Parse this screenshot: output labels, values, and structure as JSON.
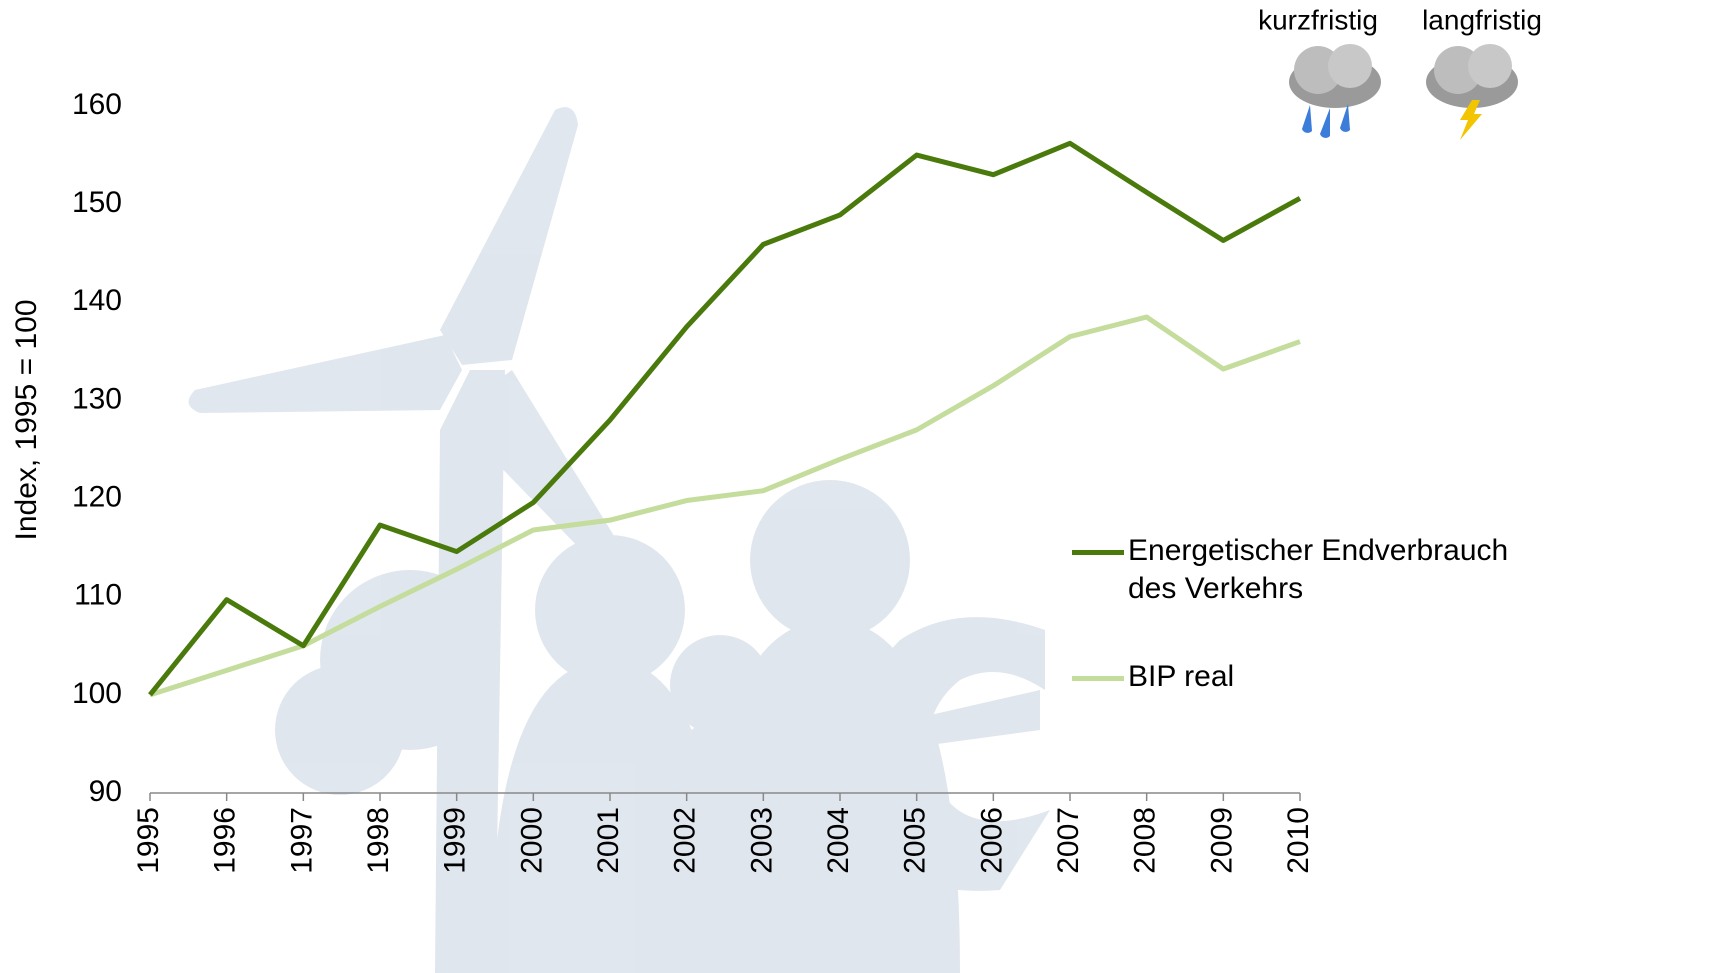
{
  "chart_data": {
    "type": "line",
    "y_label": "Index, 1995 = 100",
    "categories": [
      "1995",
      "1996",
      "1997",
      "1998",
      "1999",
      "2000",
      "2001",
      "2002",
      "2003",
      "2004",
      "2005",
      "2006",
      "2007",
      "2008",
      "2009",
      "2010"
    ],
    "series": [
      {
        "name": "Energetischer Endverbrauch des Verkehrs",
        "color": "#4a7a0c",
        "values": [
          100,
          109.7,
          105,
          117.3,
          114.6,
          119.6,
          128,
          137.5,
          145.9,
          148.9,
          155,
          153,
          156.2,
          151.2,
          146.3,
          150.6
        ]
      },
      {
        "name": "BIP real",
        "color": "#c4dc9c",
        "values": [
          100,
          102.5,
          105,
          109,
          112.8,
          116.8,
          117.8,
          119.8,
          120.8,
          124,
          127,
          131.5,
          136.5,
          138.5,
          133.2,
          136
        ]
      }
    ],
    "ylim": [
      90,
      160
    ],
    "yticks": [
      90,
      100,
      110,
      120,
      130,
      140,
      150,
      160
    ],
    "outlook": [
      "kurzfristig",
      "langfristig"
    ]
  }
}
